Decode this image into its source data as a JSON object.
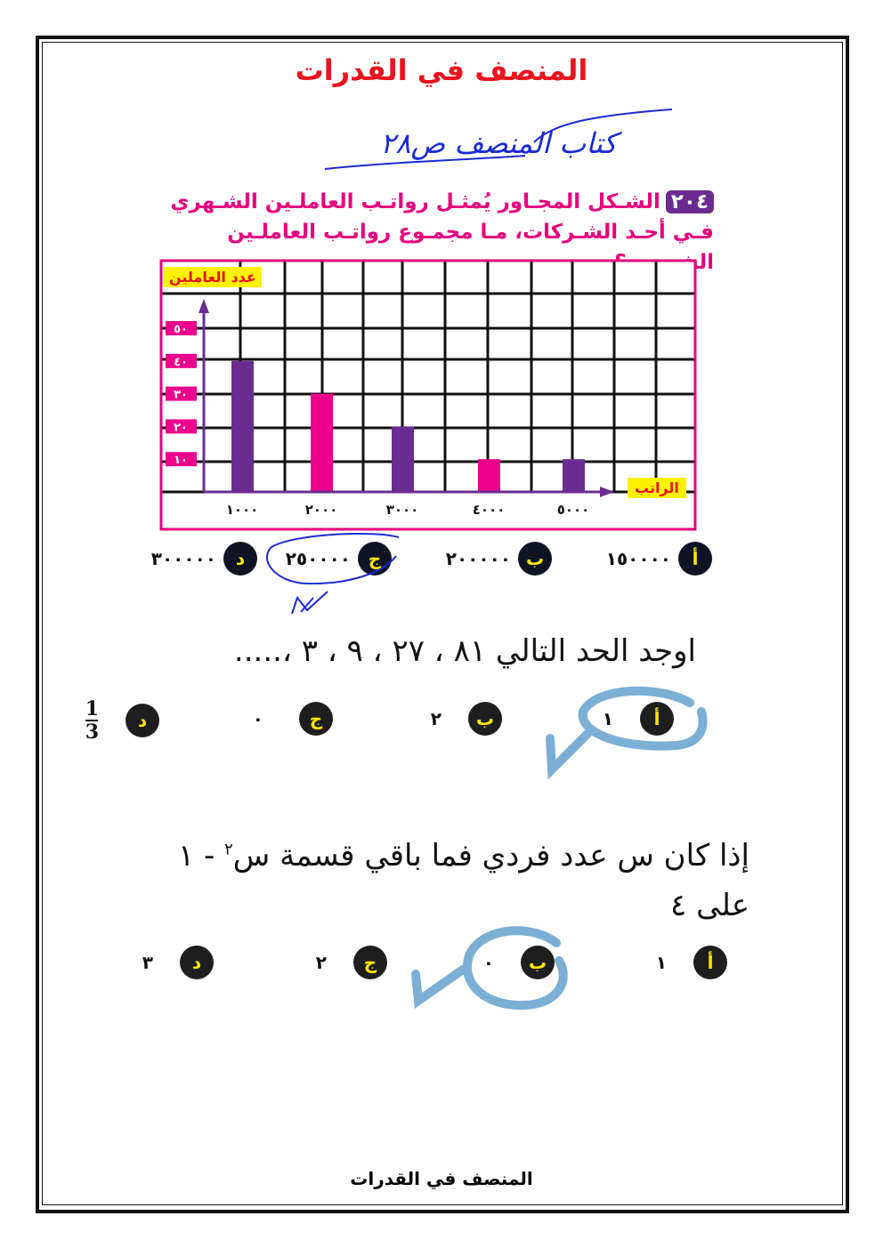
{
  "header": {
    "title": "المنصف في القدرات",
    "handwritten_note": "كتاب المنصف ص٢٨"
  },
  "question1": {
    "number": "٢٠٤",
    "text": "الشـكل المجـاور يُمثـل رواتـب العاملـين الشـهري فـي أحـد الشـركات، مـا مجمـوع رواتـب العاملـين الشـهري؟",
    "options": [
      {
        "letter": "أ",
        "value": "١٥٠٠٠٠"
      },
      {
        "letter": "ب",
        "value": "٢٠٠٠٠٠"
      },
      {
        "letter": "ج",
        "value": "٢٥٠٠٠٠"
      },
      {
        "letter": "د",
        "value": "٣٠٠٠٠٠"
      }
    ],
    "marked_answer": "ج"
  },
  "chart_data": {
    "type": "bar",
    "xlabel": "الراتب",
    "ylabel": "عدد العاملين",
    "categories": [
      "١٠٠٠",
      "٢٠٠٠",
      "٣٠٠٠",
      "٤٠٠٠",
      "٥٠٠٠"
    ],
    "x": [
      1000,
      2000,
      3000,
      4000,
      5000
    ],
    "values": [
      40,
      30,
      20,
      10,
      10
    ],
    "y_ticks": [
      "١٠",
      "٢٠",
      "٣٠",
      "٤٠",
      "٥٠"
    ],
    "ylim": [
      0,
      50
    ],
    "grid": true,
    "bar_colors": [
      "#6b2c91",
      "#ec008c",
      "#6b2c91",
      "#ec008c",
      "#6b2c91"
    ],
    "frame_color": "#e6007e"
  },
  "question2": {
    "text": "اوجد الحد التالي   ٨١ ، ٢٧ ، ٩ ، ٣ ،.....",
    "options": [
      {
        "letter": "أ",
        "value": "١"
      },
      {
        "letter": "ب",
        "value": "٢"
      },
      {
        "letter": "ج",
        "value": "٠"
      },
      {
        "letter": "د",
        "numerator": "1",
        "denominator": "3"
      }
    ],
    "marked_answer": "أ"
  },
  "question3": {
    "line1": "إذا كان س عدد فردي فما باقي قسمة س",
    "superscript": "٢",
    "line1_end": " - ١",
    "line2": "على ٤",
    "options": [
      {
        "letter": "أ",
        "value": "١"
      },
      {
        "letter": "ب",
        "value": "٠"
      },
      {
        "letter": "ج",
        "value": "٢"
      },
      {
        "letter": "د",
        "value": "٣"
      }
    ],
    "marked_answer": "ب"
  },
  "footer": {
    "text": "المنصف في القدرات"
  },
  "colors": {
    "title": "#e8141e",
    "question": "#e6007e",
    "annotation_pen": "#1a2bd6",
    "annotation_marker": "#7bafd6",
    "option_letter": "#ffe600"
  }
}
